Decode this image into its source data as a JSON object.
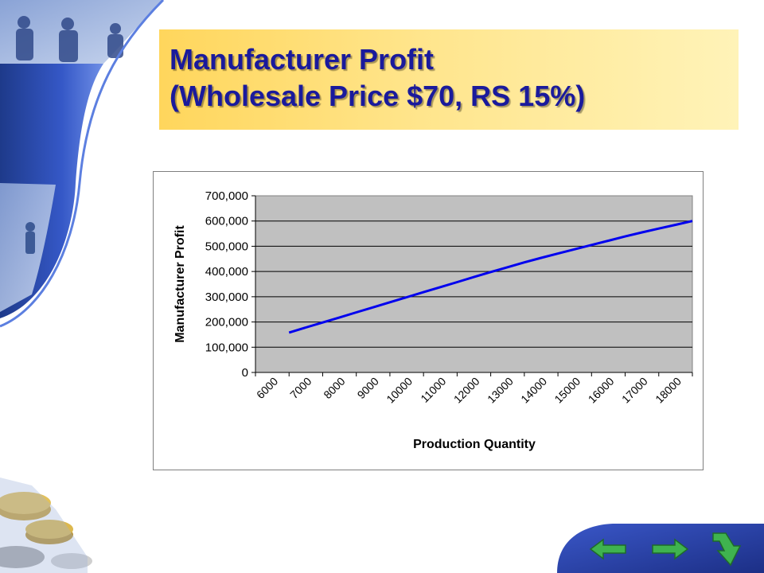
{
  "slide": {
    "title_line1": "Manufacturer Profit",
    "title_line2": "(Wholesale Price $70, RS 15%)"
  },
  "colors": {
    "title_text": "#1a1a9c",
    "plot_background": "#c0c0c0",
    "line": "#0000ee",
    "nav_arrow": "#3fb34f"
  },
  "chart_data": {
    "type": "line",
    "title": "",
    "xlabel": "Production Quantity",
    "ylabel": "Manufacturer Profit",
    "categories": [
      "6000",
      "7000",
      "8000",
      "9000",
      "10000",
      "11000",
      "12000",
      "13000",
      "14000",
      "15000",
      "16000",
      "17000",
      "18000"
    ],
    "ylim": [
      0,
      700000
    ],
    "yticks": [
      "0",
      "100,000",
      "200,000",
      "300,000",
      "400,000",
      "500,000",
      "600,000",
      "700,000"
    ],
    "grid": true,
    "legend": "none",
    "series": [
      {
        "x": [
          6500,
          7000,
          7500,
          8000,
          8500,
          9000,
          9500,
          10000,
          10500,
          11000,
          11500,
          12000,
          12500,
          13000,
          13500,
          14000,
          14500,
          15000,
          15500,
          16000,
          16500,
          17000,
          17500,
          18000,
          18500
        ],
        "values": [
          158000,
          178000,
          198000,
          218000,
          238000,
          258000,
          278000,
          298000,
          318000,
          338000,
          358000,
          378000,
          398000,
          417000,
          436000,
          454000,
          471000,
          488000,
          505000,
          522000,
          539000,
          555000,
          570000,
          585000,
          600000
        ]
      }
    ]
  },
  "nav": {
    "icons": [
      "back-arrow-icon",
      "forward-arrow-icon",
      "return-arrow-icon"
    ]
  }
}
